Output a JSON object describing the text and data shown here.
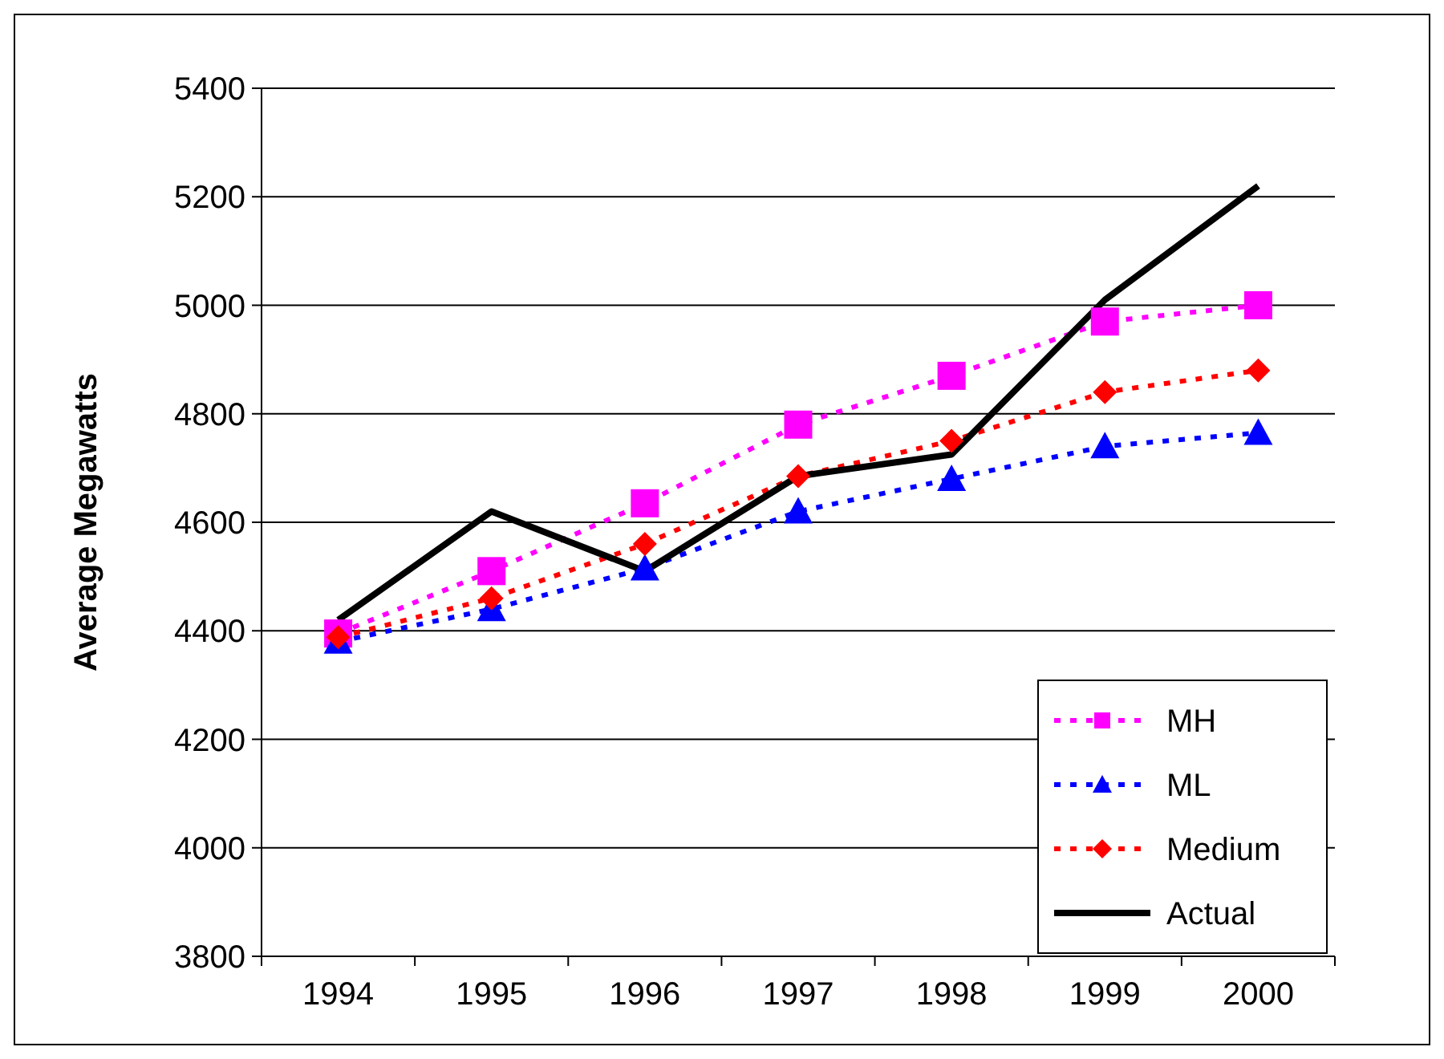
{
  "chart_data": {
    "type": "line",
    "ylabel": "Average Megawatts",
    "categories": [
      "1994",
      "1995",
      "1996",
      "1997",
      "1998",
      "1999",
      "2000"
    ],
    "series": [
      {
        "name": "MH",
        "color": "#ff00ff",
        "values": [
          4395,
          4510,
          4635,
          4780,
          4870,
          4970,
          5000
        ],
        "marker": "square",
        "line_style": "dotted"
      },
      {
        "name": "ML",
        "color": "#0000ff",
        "values": [
          4380,
          4440,
          4515,
          4620,
          4680,
          4740,
          4765
        ],
        "marker": "triangle",
        "line_style": "dotted"
      },
      {
        "name": "Medium",
        "color": "#ff0000",
        "values": [
          4388,
          4460,
          4560,
          4685,
          4750,
          4840,
          4880
        ],
        "marker": "diamond",
        "line_style": "dotted"
      },
      {
        "name": "Actual",
        "color": "#000000",
        "values": [
          4420,
          4620,
          4510,
          4685,
          4725,
          5010,
          5220
        ],
        "marker": "none",
        "line_style": "solid"
      }
    ],
    "ylim": [
      3800,
      5400
    ],
    "yticks": [
      3800,
      4000,
      4200,
      4400,
      4600,
      4800,
      5000,
      5200,
      5400
    ],
    "grid": "y",
    "legend": "bottom right"
  }
}
